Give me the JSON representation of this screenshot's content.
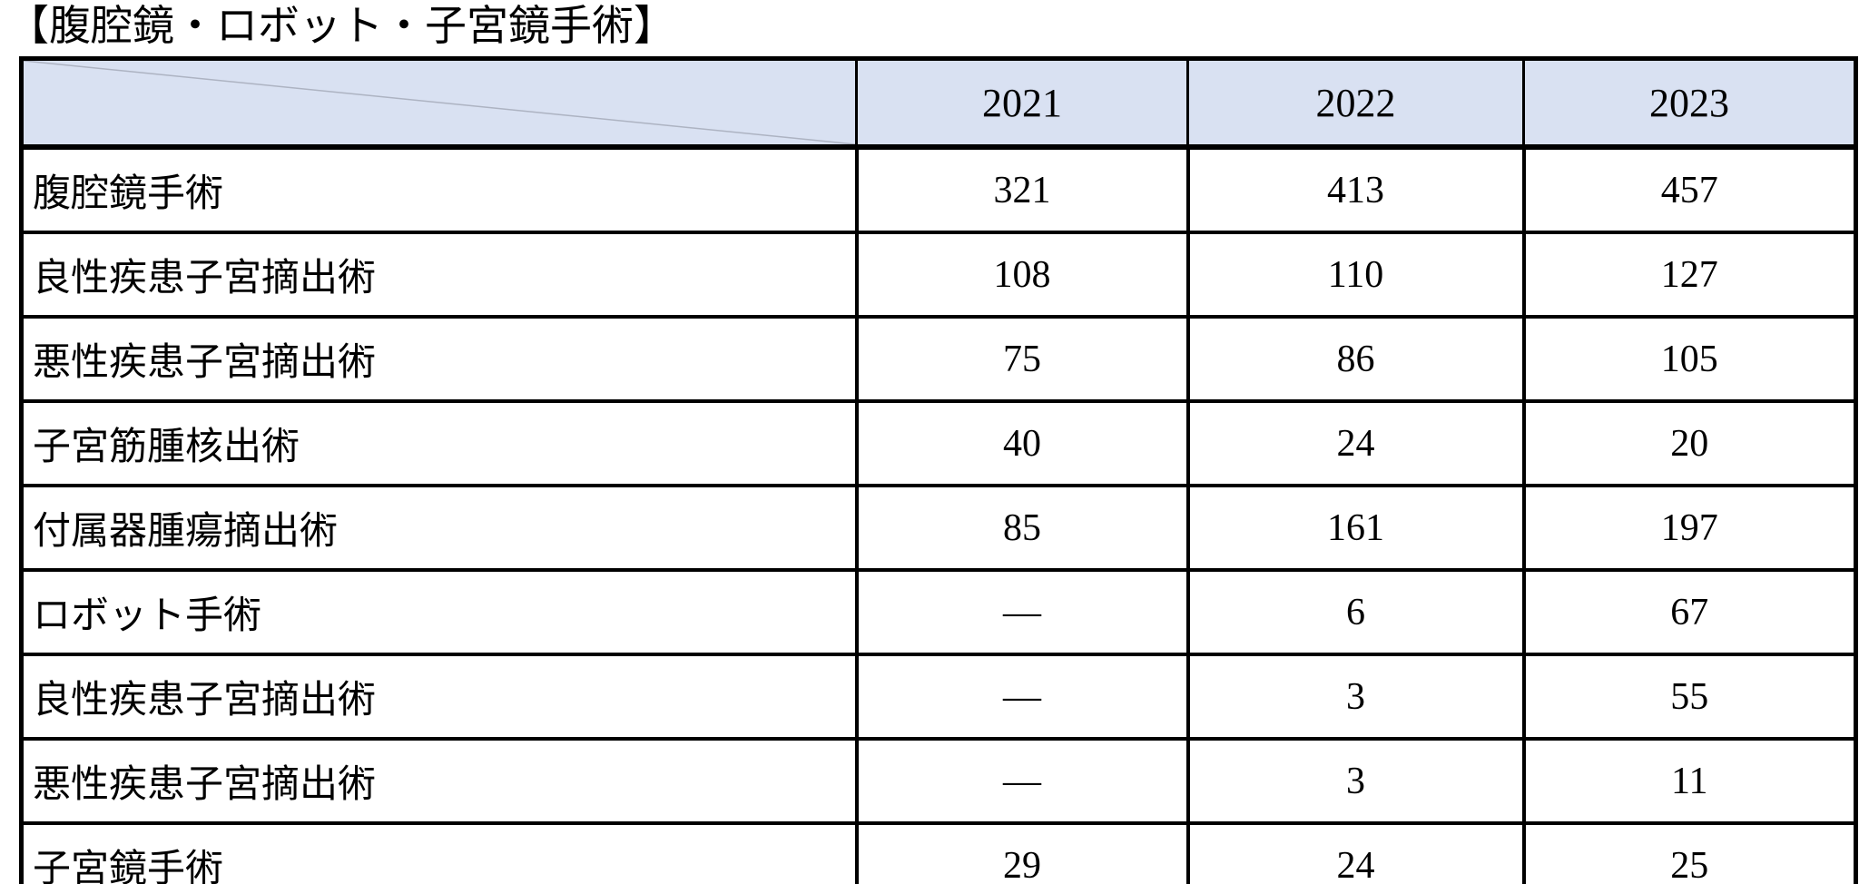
{
  "page": {
    "title": "【腹腔鏡・ロボット・子宮鏡手術】"
  },
  "table": {
    "header": {
      "corner": "",
      "years": [
        "2021",
        "2022",
        "2023"
      ]
    },
    "rows": [
      {
        "label": "腹腔鏡手術",
        "values": [
          "321",
          "413",
          "457"
        ]
      },
      {
        "label": "良性疾患子宮摘出術",
        "values": [
          "108",
          "110",
          "127"
        ]
      },
      {
        "label": "悪性疾患子宮摘出術",
        "values": [
          "75",
          "86",
          "105"
        ]
      },
      {
        "label": "子宮筋腫核出術",
        "values": [
          "40",
          "24",
          "20"
        ]
      },
      {
        "label": "付属器腫瘍摘出術",
        "values": [
          "85",
          "161",
          "197"
        ]
      },
      {
        "label": "ロボット手術",
        "values": [
          "—",
          "6",
          "67"
        ]
      },
      {
        "label": "良性疾患子宮摘出術",
        "values": [
          "—",
          "3",
          "55"
        ]
      },
      {
        "label": "悪性疾患子宮摘出術",
        "values": [
          "—",
          "3",
          "11"
        ]
      },
      {
        "label": "子宮鏡手術",
        "values": [
          "29",
          "24",
          "25"
        ]
      }
    ],
    "colors": {
      "header_bg": "#d9e1f2",
      "border": "#000000",
      "diagonal_line": "#adb3c2"
    }
  },
  "chart_data": {
    "type": "table",
    "title": "【腹腔鏡・ロボット・子宮鏡手術】",
    "columns": [
      "",
      "2021",
      "2022",
      "2023"
    ],
    "rows": [
      [
        "腹腔鏡手術",
        321,
        413,
        457
      ],
      [
        "良性疾患子宮摘出術",
        108,
        110,
        127
      ],
      [
        "悪性疾患子宮摘出術",
        75,
        86,
        105
      ],
      [
        "子宮筋腫核出術",
        40,
        24,
        20
      ],
      [
        "付属器腫瘍摘出術",
        85,
        161,
        197
      ],
      [
        "ロボット手術",
        null,
        6,
        67
      ],
      [
        "良性疾患子宮摘出術",
        null,
        3,
        55
      ],
      [
        "悪性疾患子宮摘出術",
        null,
        3,
        11
      ],
      [
        "子宮鏡手術",
        29,
        24,
        25
      ]
    ],
    "notes": "null values are shown as a long dash (—) in the 2021 column"
  }
}
